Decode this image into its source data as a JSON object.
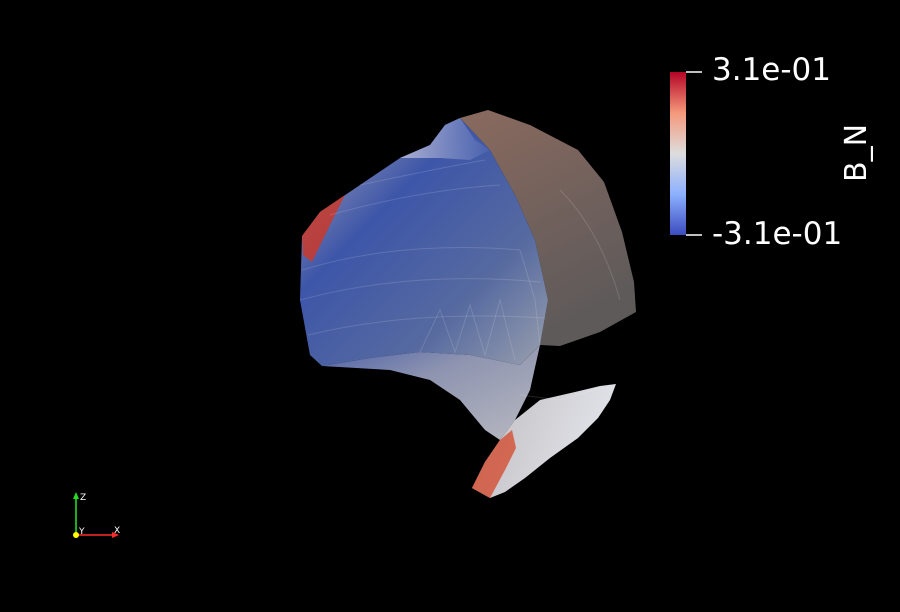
{
  "scalar_bar": {
    "title": "B_N",
    "max_label": "3.1e-01",
    "min_label": "-3.1e-01",
    "colors": {
      "max": "#b40426",
      "upper": "#f4987a",
      "mid": "#dddddd",
      "lower": "#8db0fe",
      "min": "#3b4cc0"
    }
  },
  "orientation_axes": {
    "x_label": "X",
    "y_label": "Y",
    "z_label": "Z",
    "colors": {
      "x": "#ff2a2a",
      "y": "#ffff00",
      "z": "#22dd22"
    }
  },
  "background": "#000000"
}
